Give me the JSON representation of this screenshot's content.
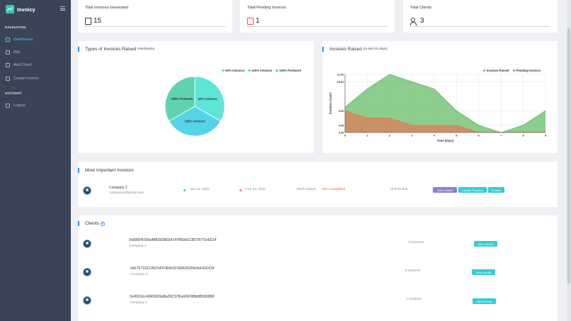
{
  "app": {
    "name": "Invoicy"
  },
  "sidebar": {
    "nav_heading": "NAVIGATION",
    "items": [
      {
        "label": "Dashboard",
        "icon": "home-icon",
        "active": true
      },
      {
        "label": "Bills",
        "icon": "bills-icon"
      },
      {
        "label": "Add Client",
        "icon": "add-user-icon"
      },
      {
        "label": "Create Invoice",
        "icon": "file-icon"
      }
    ],
    "account_heading": "ACCOUNT",
    "logout": {
      "label": "Logout",
      "icon": "logout-icon"
    }
  },
  "stats": [
    {
      "title": "Total Invoices Generated",
      "value": "15",
      "icon": "document-icon"
    },
    {
      "title": "Total Pending Invoices",
      "value": "1",
      "icon": "pending-document-icon",
      "color": "#e05a3c"
    },
    {
      "title": "Total Clients",
      "value": "3",
      "icon": "users-icon"
    }
  ],
  "types_chart": {
    "title": "Types of Invoices Raised",
    "subtitle": "Distribution",
    "legend": [
      "50% Advance",
      "100% Advance",
      "100% Postwork"
    ],
    "slice_labels": [
      "50% Advance",
      "100% Advance",
      "100% Postwork"
    ]
  },
  "raised_chart": {
    "title": "Invoices Raised",
    "subtitle": "(in last 10 days)",
    "legend": [
      "Invoices Raised",
      "Pending Invoices"
    ]
  },
  "chart_data": [
    {
      "type": "pie",
      "categories": [
        "50% Advance",
        "100% Advance",
        "100% Postwork"
      ],
      "values": [
        5,
        5,
        5
      ],
      "colors": [
        "#5ee5d8",
        "#55d4e8",
        "#5fd3b0"
      ],
      "legend": "top-right"
    },
    {
      "type": "area",
      "x": [
        0,
        1,
        2,
        3,
        4,
        5,
        6,
        7,
        8,
        9
      ],
      "series": [
        {
          "name": "Invoices Raised",
          "values": [
            6.5,
            9,
            11,
            10,
            9,
            6,
            4,
            3,
            4,
            6
          ],
          "color": "#5cb85c"
        },
        {
          "name": "Pending Invoices",
          "values": [
            6,
            5,
            5,
            4,
            4,
            4,
            3,
            3,
            3,
            3
          ],
          "color": "#e07b5a"
        }
      ],
      "xlabel": "Time (days)",
      "ylabel": "Invoices Count",
      "y_ticks": [
        "3.00",
        "4.00",
        "6.00",
        "10.00",
        "11.00"
      ],
      "x_ticks": [
        "0",
        "1",
        "2",
        "3",
        "4",
        "5",
        "6",
        "7",
        "8",
        "9"
      ],
      "ylim": [
        3,
        11
      ],
      "grid": true,
      "legend": "top-right"
    }
  ],
  "important": {
    "title": "Most Important Invoices",
    "row": {
      "company": "Company 2",
      "email": "company2@gmail.com",
      "date1": "Jan 15, 2022",
      "date2": "Feb 24, 2022",
      "status_label": "Work Status:",
      "status_value": "Not Completed",
      "amount": "18 ETH due",
      "buttons": [
        "View Details",
        "Update Progress",
        "Remind"
      ]
    }
  },
  "clients": {
    "title": "Clients",
    "rows": [
      {
        "address": "0x68EFB190a48B2E58EE4147BEb01C8D78770eE514",
        "company": "Company 2",
        "invoices": "8 Invoices",
        "button": "View Details"
      },
      {
        "address": "0xE76710212607eFF9E8c021E862D26fe9cE41DC6f",
        "company": "Company 3",
        "invoices": "5 Invoices",
        "button": "View Details"
      },
      {
        "address": "0x45D1Ec4660902bd8a29C378ceb5F089b8B3669B8",
        "company": "Company 4",
        "invoices": "2 Invoices",
        "button": "View Details"
      }
    ]
  }
}
